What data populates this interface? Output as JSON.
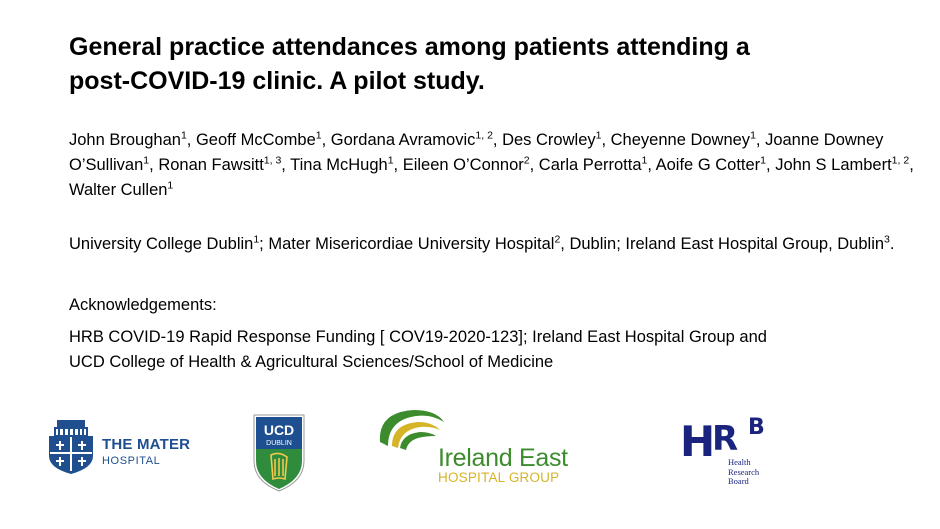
{
  "title_lines": [
    "General practice attendances among patients attending a",
    "post-COVID-19 clinic. A pilot study."
  ],
  "authors": [
    {
      "name": "John Broughan",
      "sup": "1",
      "sep": ", "
    },
    {
      "name": "Geoff McCombe",
      "sup": "1",
      "sep": ", "
    },
    {
      "name": "Gordana Avramovic",
      "sup": "1, 2",
      "sep": ", "
    },
    {
      "name": "Des Crowley",
      "sup": "1",
      "sep": ", "
    },
    {
      "name": "Cheyenne Downey",
      "sup": "1",
      "sep": ", "
    },
    {
      "name": "Joanne Downey O’Sullivan",
      "sup": "1",
      "sep": ", "
    },
    {
      "name": "Ronan Fawsitt",
      "sup": "1, 3",
      "sep": ", "
    },
    {
      "name": "Tina McHugh",
      "sup": "1",
      "sep": ", "
    },
    {
      "name": "Eileen O’Connor",
      "sup": "2",
      "sep": ", "
    },
    {
      "name": "Carla Perrotta",
      "sup": "1",
      "sep": ", "
    },
    {
      "name": "Aoife G Cotter",
      "sup": "1",
      "sep": ", "
    },
    {
      "name": "John S Lambert",
      "sup": "1, 2",
      "sep": ", "
    },
    {
      "name": "Walter Cullen",
      "sup": "1",
      "sep": ""
    }
  ],
  "affiliations": {
    "a1": "University College Dublin",
    "s1": "1",
    "a1_sep": "; ",
    "a2": "Mater Misericordiae University  Hospital",
    "s2": "2",
    "a2_sep": ", Dublin; ",
    "a3": "Ireland East Hospital Group,  Dublin",
    "s3": "3",
    "end": "."
  },
  "acknowledgements": {
    "heading": "Acknowledgements:",
    "line1": "HRB COVID-19 Rapid Response  Funding [ COV19-2020-123]; Ireland East Hospital Group and",
    "line2": "UCD College of Health & Agricultural  Sciences/School of Medicine"
  },
  "logos": {
    "mater": {
      "line1": "THE MATER",
      "line2": "HOSPITAL"
    },
    "ucd": {
      "line1": "UCD",
      "line2": "DUBLIN"
    },
    "ireland_east": {
      "line1": "Ireland East",
      "line2": "HOSPITAL GROUP"
    },
    "hrb": {
      "letters": "HRB",
      "sub1": "Health",
      "sub2": "Research",
      "sub3": "Board"
    }
  },
  "colors": {
    "mater_blue": "#1f4f8f",
    "ucd_blue": "#1d4f91",
    "ucd_green": "#2f8c3c",
    "ieh_green": "#3c8c2d",
    "ieh_gold": "#d6b427",
    "hrb_blue": "#1a237e"
  }
}
